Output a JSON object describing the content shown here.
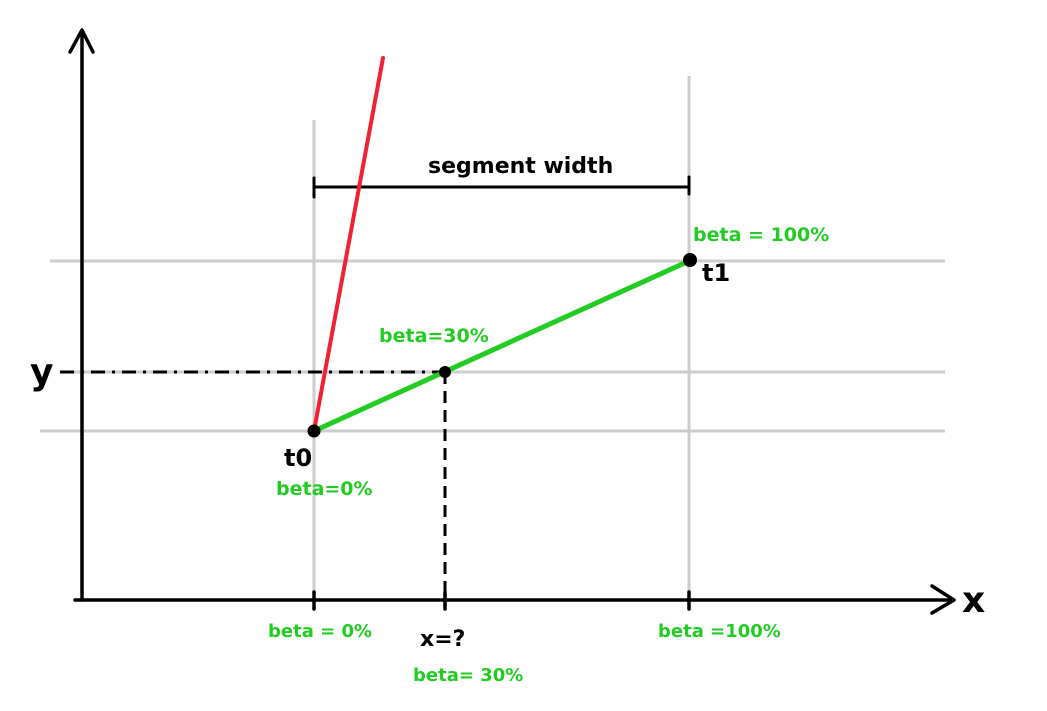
{
  "axes": {
    "x_label": "x",
    "y_label": "y"
  },
  "bracket": {
    "label": "segment width"
  },
  "points": {
    "t0": {
      "name": "t0",
      "beta": "beta=0%"
    },
    "t1": {
      "name": "t1",
      "beta": "beta = 100%"
    },
    "mid": {
      "beta": "beta=30%"
    }
  },
  "x_axis_labels": {
    "start": "beta = 0%",
    "query": "x=?",
    "query_beta": "beta= 30%",
    "end": "beta =100%"
  },
  "colors": {
    "green": "#22cc22",
    "red": "#ee2233",
    "grid": "#cccccc",
    "ink": "#000000"
  }
}
